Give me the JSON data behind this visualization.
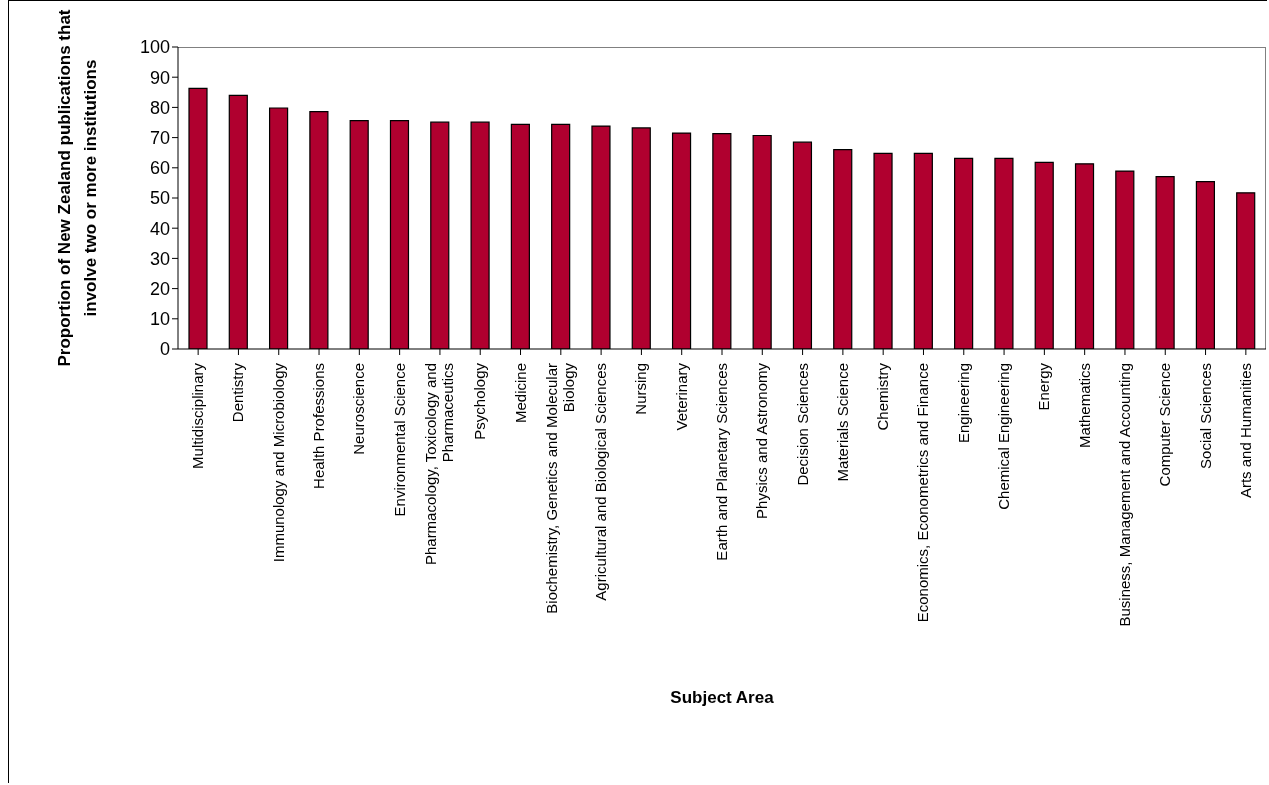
{
  "chart_data": {
    "type": "bar",
    "xlabel": "Subject Area",
    "ylabel": "Proportion of New Zealand publications that involve two or more institutions",
    "categories": [
      "Multidisciplinary",
      "Dentistry",
      "Immunology and Microbiology",
      "Health Professions",
      "Neuroscience",
      "Environmental Science",
      "Pharmacology, Toxicology and Pharmaceutics",
      "Psychology",
      "Medicine",
      "Biochemistry, Genetics and Molecular Biology",
      "Agricultural and Biological Sciences",
      "Nursing",
      "Veterinary",
      "Earth and Planetary Sciences",
      "Physics and Astronomy",
      "Decision Sciences",
      "Materials Science",
      "Chemistry",
      "Economics, Econometrics and Finance",
      "Engineering",
      "Chemical Engineering",
      "Energy",
      "Mathematics",
      "Business, Management and Accounting",
      "Computer Science",
      "Social Sciences",
      "Arts and Humanities"
    ],
    "values": [
      86.3,
      84.0,
      79.8,
      78.6,
      75.6,
      75.6,
      75.1,
      75.1,
      74.4,
      74.4,
      73.8,
      73.2,
      71.5,
      71.3,
      70.7,
      68.5,
      66.0,
      64.8,
      64.8,
      63.1,
      63.1,
      61.8,
      61.3,
      58.9,
      57.1,
      55.4,
      51.7
    ],
    "color": "#b0002f",
    "ylim": [
      0,
      100
    ],
    "yticks": [
      0,
      10,
      20,
      30,
      40,
      50,
      60,
      70,
      80,
      90,
      100
    ]
  }
}
